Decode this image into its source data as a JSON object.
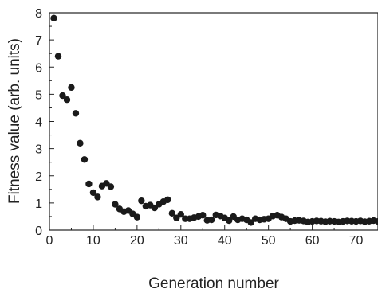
{
  "chart_data": {
    "type": "scatter",
    "title": "",
    "xlabel": "Generation number",
    "ylabel": "Fitness value (arb. units)",
    "xlim": [
      0,
      75
    ],
    "ylim": [
      0,
      8
    ],
    "x_ticks": [
      0,
      10,
      20,
      30,
      40,
      50,
      60,
      70
    ],
    "y_ticks": [
      0,
      1,
      2,
      3,
      4,
      5,
      6,
      7,
      8
    ],
    "x_tick_labels": [
      "0",
      "10",
      "20",
      "30",
      "40",
      "50",
      "60",
      "70"
    ],
    "y_tick_labels": [
      "0",
      "1",
      "2",
      "3",
      "4",
      "5",
      "6",
      "7",
      "8"
    ],
    "grid": false,
    "marker_color": "#1a1a1a",
    "series": [
      {
        "x": [
          1,
          2,
          3,
          4,
          5,
          6,
          7,
          8,
          9,
          10,
          11,
          12,
          13,
          14,
          15,
          16,
          17,
          18,
          19,
          20,
          21,
          22,
          23,
          24,
          25,
          26,
          27,
          28,
          29,
          30,
          31,
          32,
          33,
          34,
          35,
          36,
          37,
          38,
          39,
          40,
          41,
          42,
          43,
          44,
          45,
          46,
          47,
          48,
          49,
          50,
          51,
          52,
          53,
          54,
          55,
          56,
          57,
          58,
          59,
          60,
          61,
          62,
          63,
          64,
          65,
          66,
          67,
          68,
          69,
          70,
          71,
          72,
          73,
          74,
          75
        ],
        "y": [
          7.8,
          6.4,
          4.95,
          4.8,
          5.25,
          4.3,
          3.2,
          2.6,
          1.7,
          1.38,
          1.22,
          1.62,
          1.72,
          1.6,
          0.95,
          0.78,
          0.68,
          0.72,
          0.6,
          0.48,
          1.08,
          0.88,
          0.92,
          0.82,
          0.95,
          1.05,
          1.12,
          0.62,
          0.45,
          0.58,
          0.42,
          0.42,
          0.46,
          0.5,
          0.55,
          0.36,
          0.38,
          0.56,
          0.52,
          0.45,
          0.35,
          0.5,
          0.38,
          0.42,
          0.38,
          0.28,
          0.42,
          0.38,
          0.4,
          0.42,
          0.52,
          0.55,
          0.48,
          0.42,
          0.32,
          0.35,
          0.36,
          0.34,
          0.3,
          0.32,
          0.34,
          0.33,
          0.31,
          0.33,
          0.32,
          0.3,
          0.32,
          0.34,
          0.33,
          0.32,
          0.34,
          0.31,
          0.33,
          0.35,
          0.32
        ]
      }
    ]
  }
}
